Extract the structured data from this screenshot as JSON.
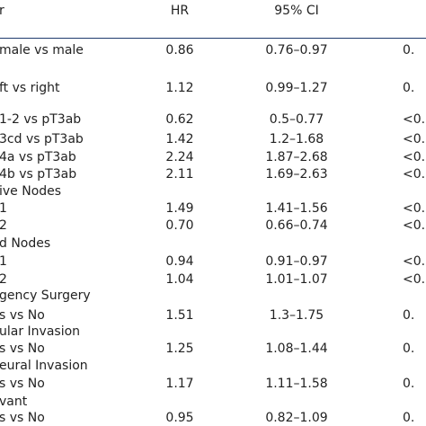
{
  "table": {
    "header": [
      "r",
      "HR",
      "95% CI"
    ],
    "rows": [
      [
        "male vs male",
        "0.86",
        "0.76–0.97",
        "0."
      ],
      [
        "ft vs right",
        "1.12",
        "0.99–1.27",
        "0."
      ],
      [
        "1-2 vs pT3ab",
        "0.62",
        "0.5–0.77",
        "<0."
      ],
      [
        "3cd vs pT3ab",
        "1.42",
        "1.2–1.68",
        "<0."
      ],
      [
        "4a vs pT3ab",
        "2.24",
        "1.87–2.68",
        "<0."
      ],
      [
        "4b vs pT3ab",
        "2.11",
        "1.69–2.63",
        "<0."
      ],
      [
        "ive Nodes"
      ],
      [
        "1",
        "1.49",
        "1.41–1.56",
        "<0."
      ],
      [
        "2",
        "0.70",
        "0.66–0.74",
        "<0."
      ],
      [
        "d Nodes"
      ],
      [
        "1",
        "0.94",
        "0.91–0.97",
        "<0."
      ],
      [
        "2",
        "1.04",
        "1.01–1.07",
        "<0."
      ],
      [
        "gency Surgery"
      ],
      [
        "s vs No",
        "1.51",
        "1.3–1.75",
        "0."
      ],
      [
        "ular Invasion"
      ],
      [
        "s vs No",
        "1.25",
        "1.08–1.44",
        "0."
      ],
      [
        "eural Invasion"
      ],
      [
        "s vs No",
        "1.17",
        "1.11–1.58",
        "0."
      ],
      [
        "vant"
      ],
      [
        "s vs No",
        "0.95",
        "0.82–1.09",
        "0."
      ]
    ]
  }
}
